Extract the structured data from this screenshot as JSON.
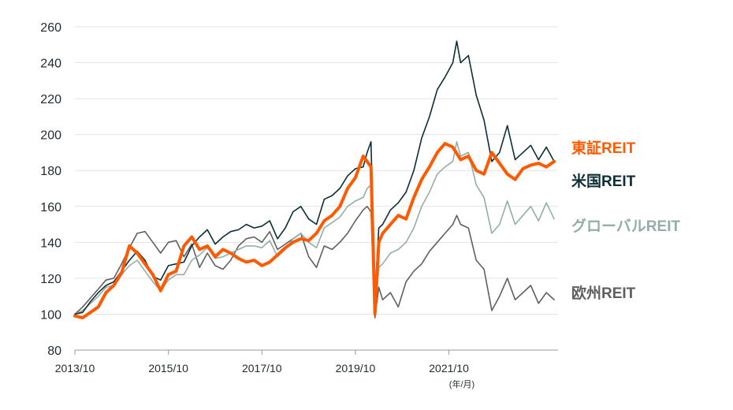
{
  "chart_data": {
    "type": "line",
    "xlabel": "",
    "ylabel": "",
    "x_unit_label": "(年/月)",
    "ylim": [
      80,
      260
    ],
    "yticks": [
      80,
      100,
      120,
      140,
      160,
      180,
      200,
      220,
      240,
      260
    ],
    "xlim": [
      "2013-10",
      "2024-02"
    ],
    "xtick_labels": [
      "2013/10",
      "2015/10",
      "2017/10",
      "2019/10",
      "2021/10"
    ],
    "xtick_values": [
      "2013-10",
      "2015-10",
      "2017-10",
      "2019-10",
      "2021-10"
    ],
    "grid": "horizontal",
    "legend": "right",
    "series": [
      {
        "name": "東証REIT",
        "color": "#ff5a00",
        "points": [
          [
            "2013-10",
            99
          ],
          [
            "2013-12",
            98
          ],
          [
            "2014-02",
            101
          ],
          [
            "2014-04",
            104
          ],
          [
            "2014-06",
            112
          ],
          [
            "2014-08",
            116
          ],
          [
            "2014-10",
            123
          ],
          [
            "2014-12",
            138
          ],
          [
            "2015-02",
            134
          ],
          [
            "2015-04",
            128
          ],
          [
            "2015-06",
            122
          ],
          [
            "2015-08",
            113
          ],
          [
            "2015-10",
            122
          ],
          [
            "2015-12",
            124
          ],
          [
            "2016-02",
            138
          ],
          [
            "2016-04",
            143
          ],
          [
            "2016-06",
            136
          ],
          [
            "2016-08",
            138
          ],
          [
            "2016-10",
            132
          ],
          [
            "2016-12",
            136
          ],
          [
            "2017-02",
            134
          ],
          [
            "2017-04",
            131
          ],
          [
            "2017-06",
            129
          ],
          [
            "2017-08",
            130
          ],
          [
            "2017-10",
            127
          ],
          [
            "2017-12",
            129
          ],
          [
            "2018-02",
            133
          ],
          [
            "2018-04",
            137
          ],
          [
            "2018-06",
            140
          ],
          [
            "2018-08",
            142
          ],
          [
            "2018-10",
            141
          ],
          [
            "2018-12",
            145
          ],
          [
            "2019-02",
            152
          ],
          [
            "2019-04",
            155
          ],
          [
            "2019-06",
            160
          ],
          [
            "2019-08",
            170
          ],
          [
            "2019-10",
            176
          ],
          [
            "2019-12",
            188
          ],
          [
            "2020-01",
            185
          ],
          [
            "2020-02",
            182
          ],
          [
            "2020-03",
            100
          ],
          [
            "2020-04",
            140
          ],
          [
            "2020-05",
            145
          ],
          [
            "2020-07",
            150
          ],
          [
            "2020-09",
            155
          ],
          [
            "2020-11",
            153
          ],
          [
            "2021-01",
            165
          ],
          [
            "2021-03",
            175
          ],
          [
            "2021-05",
            182
          ],
          [
            "2021-07",
            190
          ],
          [
            "2021-09",
            195
          ],
          [
            "2021-11",
            193
          ],
          [
            "2022-01",
            186
          ],
          [
            "2022-03",
            188
          ],
          [
            "2022-05",
            180
          ],
          [
            "2022-07",
            178
          ],
          [
            "2022-09",
            190
          ],
          [
            "2022-11",
            184
          ],
          [
            "2023-01",
            178
          ],
          [
            "2023-03",
            175
          ],
          [
            "2023-05",
            181
          ],
          [
            "2023-07",
            183
          ],
          [
            "2023-09",
            184
          ],
          [
            "2023-11",
            182
          ],
          [
            "2024-01",
            185
          ]
        ]
      },
      {
        "name": "米国REIT",
        "color": "#0b2f35",
        "points": [
          [
            "2013-10",
            100
          ],
          [
            "2013-12",
            101
          ],
          [
            "2014-02",
            107
          ],
          [
            "2014-04",
            112
          ],
          [
            "2014-06",
            116
          ],
          [
            "2014-08",
            118
          ],
          [
            "2014-10",
            124
          ],
          [
            "2014-12",
            130
          ],
          [
            "2015-02",
            135
          ],
          [
            "2015-04",
            130
          ],
          [
            "2015-06",
            121
          ],
          [
            "2015-08",
            119
          ],
          [
            "2015-10",
            127
          ],
          [
            "2015-12",
            128
          ],
          [
            "2016-02",
            129
          ],
          [
            "2016-04",
            138
          ],
          [
            "2016-06",
            143
          ],
          [
            "2016-08",
            147
          ],
          [
            "2016-10",
            139
          ],
          [
            "2016-12",
            143
          ],
          [
            "2017-02",
            146
          ],
          [
            "2017-04",
            147
          ],
          [
            "2017-06",
            150
          ],
          [
            "2017-08",
            148
          ],
          [
            "2017-10",
            149
          ],
          [
            "2017-12",
            152
          ],
          [
            "2018-02",
            142
          ],
          [
            "2018-04",
            148
          ],
          [
            "2018-06",
            157
          ],
          [
            "2018-08",
            160
          ],
          [
            "2018-10",
            153
          ],
          [
            "2018-12",
            150
          ],
          [
            "2019-02",
            164
          ],
          [
            "2019-04",
            166
          ],
          [
            "2019-06",
            170
          ],
          [
            "2019-08",
            177
          ],
          [
            "2019-10",
            181
          ],
          [
            "2019-12",
            182
          ],
          [
            "2020-01",
            190
          ],
          [
            "2020-02",
            196
          ],
          [
            "2020-03",
            110
          ],
          [
            "2020-04",
            148
          ],
          [
            "2020-05",
            150
          ],
          [
            "2020-07",
            158
          ],
          [
            "2020-09",
            162
          ],
          [
            "2020-11",
            168
          ],
          [
            "2021-01",
            180
          ],
          [
            "2021-03",
            198
          ],
          [
            "2021-05",
            210
          ],
          [
            "2021-07",
            225
          ],
          [
            "2021-09",
            232
          ],
          [
            "2021-11",
            240
          ],
          [
            "2021-12",
            252
          ],
          [
            "2022-01",
            240
          ],
          [
            "2022-03",
            244
          ],
          [
            "2022-05",
            222
          ],
          [
            "2022-07",
            208
          ],
          [
            "2022-09",
            185
          ],
          [
            "2022-11",
            190
          ],
          [
            "2023-01",
            205
          ],
          [
            "2023-03",
            186
          ],
          [
            "2023-05",
            190
          ],
          [
            "2023-07",
            194
          ],
          [
            "2023-09",
            186
          ],
          [
            "2023-11",
            193
          ],
          [
            "2024-01",
            185
          ]
        ]
      },
      {
        "name": "グローバルREIT",
        "color": "#93aeaa",
        "points": [
          [
            "2013-10",
            100
          ],
          [
            "2013-12",
            102
          ],
          [
            "2014-02",
            106
          ],
          [
            "2014-04",
            110
          ],
          [
            "2014-06",
            115
          ],
          [
            "2014-08",
            116
          ],
          [
            "2014-10",
            122
          ],
          [
            "2014-12",
            127
          ],
          [
            "2015-02",
            130
          ],
          [
            "2015-04",
            124
          ],
          [
            "2015-06",
            118
          ],
          [
            "2015-08",
            113
          ],
          [
            "2015-10",
            119
          ],
          [
            "2015-12",
            122
          ],
          [
            "2016-02",
            122
          ],
          [
            "2016-04",
            130
          ],
          [
            "2016-06",
            133
          ],
          [
            "2016-08",
            137
          ],
          [
            "2016-10",
            131
          ],
          [
            "2016-12",
            132
          ],
          [
            "2017-02",
            134
          ],
          [
            "2017-04",
            136
          ],
          [
            "2017-06",
            138
          ],
          [
            "2017-08",
            138
          ],
          [
            "2017-10",
            137
          ],
          [
            "2017-12",
            141
          ],
          [
            "2018-02",
            132
          ],
          [
            "2018-04",
            136
          ],
          [
            "2018-06",
            142
          ],
          [
            "2018-08",
            145
          ],
          [
            "2018-10",
            140
          ],
          [
            "2018-12",
            137
          ],
          [
            "2019-02",
            148
          ],
          [
            "2019-04",
            151
          ],
          [
            "2019-06",
            154
          ],
          [
            "2019-08",
            160
          ],
          [
            "2019-10",
            163
          ],
          [
            "2019-12",
            165
          ],
          [
            "2020-01",
            170
          ],
          [
            "2020-02",
            172
          ],
          [
            "2020-03",
            102
          ],
          [
            "2020-04",
            126
          ],
          [
            "2020-05",
            128
          ],
          [
            "2020-07",
            134
          ],
          [
            "2020-09",
            136
          ],
          [
            "2020-11",
            140
          ],
          [
            "2021-01",
            148
          ],
          [
            "2021-03",
            160
          ],
          [
            "2021-05",
            168
          ],
          [
            "2021-07",
            178
          ],
          [
            "2021-09",
            182
          ],
          [
            "2021-11",
            185
          ],
          [
            "2021-12",
            196
          ],
          [
            "2022-01",
            188
          ],
          [
            "2022-03",
            190
          ],
          [
            "2022-05",
            172
          ],
          [
            "2022-07",
            165
          ],
          [
            "2022-09",
            145
          ],
          [
            "2022-11",
            150
          ],
          [
            "2023-01",
            163
          ],
          [
            "2023-03",
            150
          ],
          [
            "2023-05",
            155
          ],
          [
            "2023-07",
            160
          ],
          [
            "2023-09",
            152
          ],
          [
            "2023-11",
            162
          ],
          [
            "2024-01",
            153
          ]
        ]
      },
      {
        "name": "欧州REIT",
        "color": "#5f5f5f",
        "points": [
          [
            "2013-10",
            100
          ],
          [
            "2013-12",
            104
          ],
          [
            "2014-02",
            109
          ],
          [
            "2014-04",
            114
          ],
          [
            "2014-06",
            119
          ],
          [
            "2014-08",
            120
          ],
          [
            "2014-10",
            128
          ],
          [
            "2014-12",
            137
          ],
          [
            "2015-02",
            145
          ],
          [
            "2015-04",
            146
          ],
          [
            "2015-06",
            140
          ],
          [
            "2015-08",
            134
          ],
          [
            "2015-10",
            140
          ],
          [
            "2015-12",
            141
          ],
          [
            "2016-02",
            132
          ],
          [
            "2016-04",
            139
          ],
          [
            "2016-06",
            126
          ],
          [
            "2016-08",
            134
          ],
          [
            "2016-10",
            127
          ],
          [
            "2016-12",
            125
          ],
          [
            "2017-02",
            130
          ],
          [
            "2017-04",
            138
          ],
          [
            "2017-06",
            142
          ],
          [
            "2017-08",
            143
          ],
          [
            "2017-10",
            140
          ],
          [
            "2017-12",
            146
          ],
          [
            "2018-02",
            136
          ],
          [
            "2018-04",
            139
          ],
          [
            "2018-06",
            142
          ],
          [
            "2018-08",
            145
          ],
          [
            "2018-10",
            132
          ],
          [
            "2018-12",
            126
          ],
          [
            "2019-02",
            138
          ],
          [
            "2019-04",
            136
          ],
          [
            "2019-06",
            140
          ],
          [
            "2019-08",
            145
          ],
          [
            "2019-10",
            152
          ],
          [
            "2019-12",
            158
          ],
          [
            "2020-01",
            160
          ],
          [
            "2020-02",
            157
          ],
          [
            "2020-03",
            98
          ],
          [
            "2020-04",
            115
          ],
          [
            "2020-05",
            108
          ],
          [
            "2020-07",
            112
          ],
          [
            "2020-09",
            104
          ],
          [
            "2020-11",
            118
          ],
          [
            "2021-01",
            124
          ],
          [
            "2021-03",
            128
          ],
          [
            "2021-05",
            135
          ],
          [
            "2021-07",
            140
          ],
          [
            "2021-09",
            145
          ],
          [
            "2021-11",
            150
          ],
          [
            "2021-12",
            155
          ],
          [
            "2022-01",
            150
          ],
          [
            "2022-03",
            148
          ],
          [
            "2022-05",
            130
          ],
          [
            "2022-07",
            125
          ],
          [
            "2022-09",
            102
          ],
          [
            "2022-11",
            110
          ],
          [
            "2023-01",
            120
          ],
          [
            "2023-03",
            108
          ],
          [
            "2023-05",
            112
          ],
          [
            "2023-07",
            116
          ],
          [
            "2023-09",
            106
          ],
          [
            "2023-11",
            112
          ],
          [
            "2024-01",
            108
          ]
        ]
      }
    ]
  }
}
